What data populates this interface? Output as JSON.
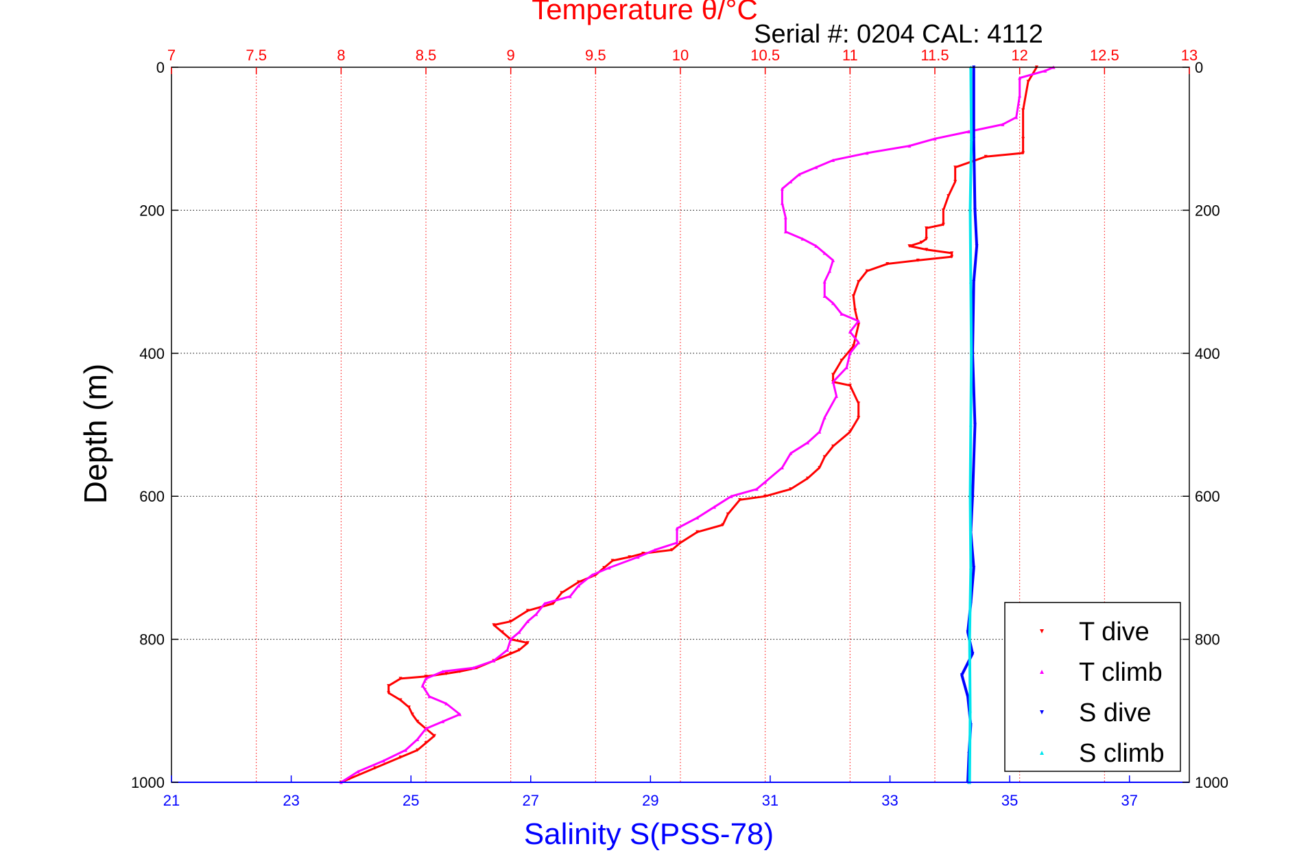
{
  "chart_data": {
    "type": "scatter",
    "title": "Temperature θ/°C",
    "subtitle": "Serial #: 0204  CAL: 4112",
    "ylabel": "Depth (m)",
    "xlabel": "Salinity S(PSS-78)",
    "y_axis": {
      "min": 0,
      "max": 1000,
      "ticks": [
        0,
        200,
        400,
        600,
        800,
        1000
      ],
      "reversed": true
    },
    "top_axis": {
      "label": "Temperature θ/°C",
      "min": 7,
      "max": 13,
      "ticks": [
        7,
        7.5,
        8,
        8.5,
        9,
        9.5,
        10,
        10.5,
        11,
        11.5,
        12,
        12.5,
        13
      ],
      "tick_labels": [
        "7",
        "7.5",
        "8",
        "8.5",
        "9",
        "9.5",
        "10",
        "10.5",
        "11",
        "11.5",
        "12",
        "12.5",
        "13"
      ],
      "color": "#ff0000"
    },
    "bottom_axis": {
      "label": "Salinity S(PSS-78)",
      "min": 21,
      "max": 38,
      "ticks": [
        21,
        23,
        25,
        27,
        29,
        31,
        33,
        35,
        37
      ],
      "tick_labels": [
        "21",
        "23",
        "25",
        "27",
        "29",
        "31",
        "33",
        "35",
        "37"
      ],
      "color": "#0000ff"
    },
    "grid": true,
    "legend": {
      "position": "bottom-right"
    },
    "series": [
      {
        "name": "T dive",
        "axis": "temperature",
        "color": "#ff0000",
        "marker": "triangle-down",
        "points": [
          [
            12.1,
            0
          ],
          [
            12.05,
            20
          ],
          [
            12.02,
            60
          ],
          [
            12.02,
            100
          ],
          [
            12.02,
            120
          ],
          [
            11.8,
            125
          ],
          [
            11.62,
            140
          ],
          [
            11.62,
            160
          ],
          [
            11.58,
            180
          ],
          [
            11.55,
            200
          ],
          [
            11.55,
            220
          ],
          [
            11.45,
            225
          ],
          [
            11.45,
            240
          ],
          [
            11.42,
            245
          ],
          [
            11.35,
            250
          ],
          [
            11.45,
            255
          ],
          [
            11.6,
            260
          ],
          [
            11.6,
            265
          ],
          [
            11.4,
            270
          ],
          [
            11.22,
            275
          ],
          [
            11.1,
            285
          ],
          [
            11.05,
            300
          ],
          [
            11.02,
            320
          ],
          [
            11.03,
            340
          ],
          [
            11.05,
            360
          ],
          [
            11.02,
            390
          ],
          [
            10.95,
            410
          ],
          [
            10.9,
            430
          ],
          [
            10.9,
            440
          ],
          [
            11.0,
            445
          ],
          [
            11.05,
            470
          ],
          [
            11.05,
            490
          ],
          [
            11.0,
            510
          ],
          [
            10.9,
            530
          ],
          [
            10.85,
            545
          ],
          [
            10.82,
            560
          ],
          [
            10.75,
            575
          ],
          [
            10.65,
            590
          ],
          [
            10.5,
            600
          ],
          [
            10.35,
            605
          ],
          [
            10.28,
            625
          ],
          [
            10.25,
            640
          ],
          [
            10.1,
            650
          ],
          [
            10.0,
            665
          ],
          [
            9.95,
            675
          ],
          [
            9.78,
            680
          ],
          [
            9.7,
            685
          ],
          [
            9.6,
            690
          ],
          [
            9.55,
            700
          ],
          [
            9.5,
            710
          ],
          [
            9.4,
            720
          ],
          [
            9.3,
            735
          ],
          [
            9.25,
            750
          ],
          [
            9.1,
            760
          ],
          [
            9.0,
            775
          ],
          [
            8.9,
            780
          ],
          [
            8.95,
            790
          ],
          [
            9.0,
            800
          ],
          [
            9.1,
            805
          ],
          [
            9.05,
            815
          ],
          [
            9.0,
            820
          ],
          [
            8.9,
            830
          ],
          [
            8.8,
            840
          ],
          [
            8.7,
            845
          ],
          [
            8.62,
            848
          ],
          [
            8.5,
            852
          ],
          [
            8.35,
            855
          ],
          [
            8.28,
            865
          ],
          [
            8.28,
            875
          ],
          [
            8.35,
            885
          ],
          [
            8.4,
            895
          ],
          [
            8.42,
            905
          ],
          [
            8.45,
            915
          ],
          [
            8.5,
            925
          ],
          [
            8.55,
            935
          ],
          [
            8.5,
            945
          ],
          [
            8.45,
            955
          ],
          [
            8.35,
            965
          ],
          [
            8.2,
            980
          ],
          [
            8.05,
            995
          ],
          [
            8.0,
            1000
          ]
        ]
      },
      {
        "name": "T climb",
        "axis": "temperature",
        "color": "#ff00ff",
        "marker": "triangle-up",
        "points": [
          [
            12.2,
            0
          ],
          [
            12.15,
            5
          ],
          [
            12.0,
            15
          ],
          [
            12.0,
            40
          ],
          [
            11.98,
            70
          ],
          [
            11.9,
            80
          ],
          [
            11.7,
            90
          ],
          [
            11.5,
            100
          ],
          [
            11.35,
            110
          ],
          [
            11.1,
            120
          ],
          [
            10.9,
            130
          ],
          [
            10.8,
            140
          ],
          [
            10.7,
            150
          ],
          [
            10.65,
            160
          ],
          [
            10.6,
            170
          ],
          [
            10.6,
            190
          ],
          [
            10.62,
            210
          ],
          [
            10.62,
            230
          ],
          [
            10.72,
            240
          ],
          [
            10.8,
            250
          ],
          [
            10.85,
            260
          ],
          [
            10.9,
            270
          ],
          [
            10.88,
            285
          ],
          [
            10.85,
            300
          ],
          [
            10.85,
            320
          ],
          [
            10.9,
            330
          ],
          [
            10.95,
            345
          ],
          [
            11.05,
            355
          ],
          [
            11.0,
            370
          ],
          [
            11.05,
            385
          ],
          [
            11.0,
            400
          ],
          [
            10.98,
            420
          ],
          [
            10.9,
            440
          ],
          [
            10.92,
            460
          ],
          [
            10.85,
            490
          ],
          [
            10.82,
            510
          ],
          [
            10.75,
            525
          ],
          [
            10.65,
            540
          ],
          [
            10.6,
            560
          ],
          [
            10.5,
            580
          ],
          [
            10.45,
            590
          ],
          [
            10.3,
            600
          ],
          [
            10.2,
            615
          ],
          [
            10.1,
            630
          ],
          [
            9.98,
            645
          ],
          [
            9.98,
            665
          ],
          [
            9.85,
            675
          ],
          [
            9.75,
            685
          ],
          [
            9.58,
            700
          ],
          [
            9.48,
            710
          ],
          [
            9.4,
            725
          ],
          [
            9.35,
            740
          ],
          [
            9.2,
            750
          ],
          [
            9.15,
            765
          ],
          [
            9.1,
            775
          ],
          [
            9.05,
            790
          ],
          [
            9.0,
            800
          ],
          [
            8.98,
            815
          ],
          [
            8.9,
            830
          ],
          [
            8.78,
            840
          ],
          [
            8.6,
            845
          ],
          [
            8.5,
            855
          ],
          [
            8.48,
            865
          ],
          [
            8.52,
            880
          ],
          [
            8.62,
            890
          ],
          [
            8.7,
            905
          ],
          [
            8.6,
            915
          ],
          [
            8.5,
            925
          ],
          [
            8.45,
            940
          ],
          [
            8.38,
            955
          ],
          [
            8.25,
            970
          ],
          [
            8.1,
            985
          ],
          [
            8.0,
            1000
          ]
        ]
      },
      {
        "name": "S dive",
        "axis": "salinity",
        "color": "#0000ff",
        "marker": "triangle-down",
        "points": [
          [
            34.4,
            0
          ],
          [
            34.4,
            100
          ],
          [
            34.42,
            200
          ],
          [
            34.45,
            250
          ],
          [
            34.4,
            300
          ],
          [
            34.38,
            400
          ],
          [
            34.42,
            500
          ],
          [
            34.38,
            600
          ],
          [
            34.35,
            650
          ],
          [
            34.4,
            700
          ],
          [
            34.35,
            750
          ],
          [
            34.3,
            790
          ],
          [
            34.38,
            820
          ],
          [
            34.2,
            850
          ],
          [
            34.3,
            880
          ],
          [
            34.35,
            920
          ],
          [
            34.32,
            960
          ],
          [
            34.3,
            1000
          ]
        ]
      },
      {
        "name": "S climb",
        "axis": "salinity",
        "color": "#00e5ee",
        "marker": "triangle-up",
        "points": [
          [
            34.35,
            0
          ],
          [
            34.36,
            100
          ],
          [
            34.34,
            200
          ],
          [
            34.35,
            300
          ],
          [
            34.36,
            400
          ],
          [
            34.35,
            500
          ],
          [
            34.34,
            600
          ],
          [
            34.35,
            700
          ],
          [
            34.33,
            800
          ],
          [
            34.34,
            900
          ],
          [
            34.33,
            1000
          ]
        ]
      }
    ]
  }
}
